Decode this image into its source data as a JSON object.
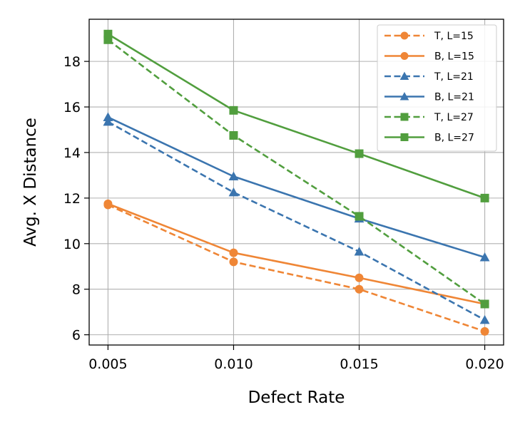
{
  "chart_data": {
    "type": "line",
    "title": "",
    "xlabel": "Defect Rate",
    "ylabel": "Avg. X Distance",
    "x": [
      0.005,
      0.01,
      0.015,
      0.02
    ],
    "x_tick_labels": [
      "0.005",
      "0.010",
      "0.015",
      "0.020"
    ],
    "xlim": [
      0.00425,
      0.02075
    ],
    "y_ticks": [
      6,
      8,
      10,
      12,
      14,
      16,
      18
    ],
    "y_tick_labels": [
      "6",
      "8",
      "10",
      "12",
      "14",
      "16",
      "18"
    ],
    "ylim": [
      5.55,
      19.85
    ],
    "grid": true,
    "legend_position": "upper right",
    "series": [
      {
        "name": "T, L=15",
        "values": [
          11.7,
          9.2,
          8.0,
          6.15
        ],
        "color": "#ef8636",
        "line_style": "dashed",
        "marker": "circle"
      },
      {
        "name": "B, L=15",
        "values": [
          11.75,
          9.6,
          8.5,
          7.35
        ],
        "color": "#ef8636",
        "line_style": "solid",
        "marker": "circle"
      },
      {
        "name": "T, L=21",
        "values": [
          15.35,
          12.25,
          9.65,
          6.65
        ],
        "color": "#3b75af",
        "line_style": "dashed",
        "marker": "triangle"
      },
      {
        "name": "B, L=21",
        "values": [
          15.55,
          12.95,
          11.1,
          9.4
        ],
        "color": "#3b75af",
        "line_style": "solid",
        "marker": "triangle"
      },
      {
        "name": "T, L=27",
        "values": [
          18.95,
          14.75,
          11.2,
          7.35
        ],
        "color": "#519e3e",
        "line_style": "dashed",
        "marker": "square"
      },
      {
        "name": "B, L=27",
        "values": [
          19.2,
          15.85,
          13.95,
          12.0
        ],
        "color": "#519e3e",
        "line_style": "solid",
        "marker": "square"
      }
    ]
  }
}
